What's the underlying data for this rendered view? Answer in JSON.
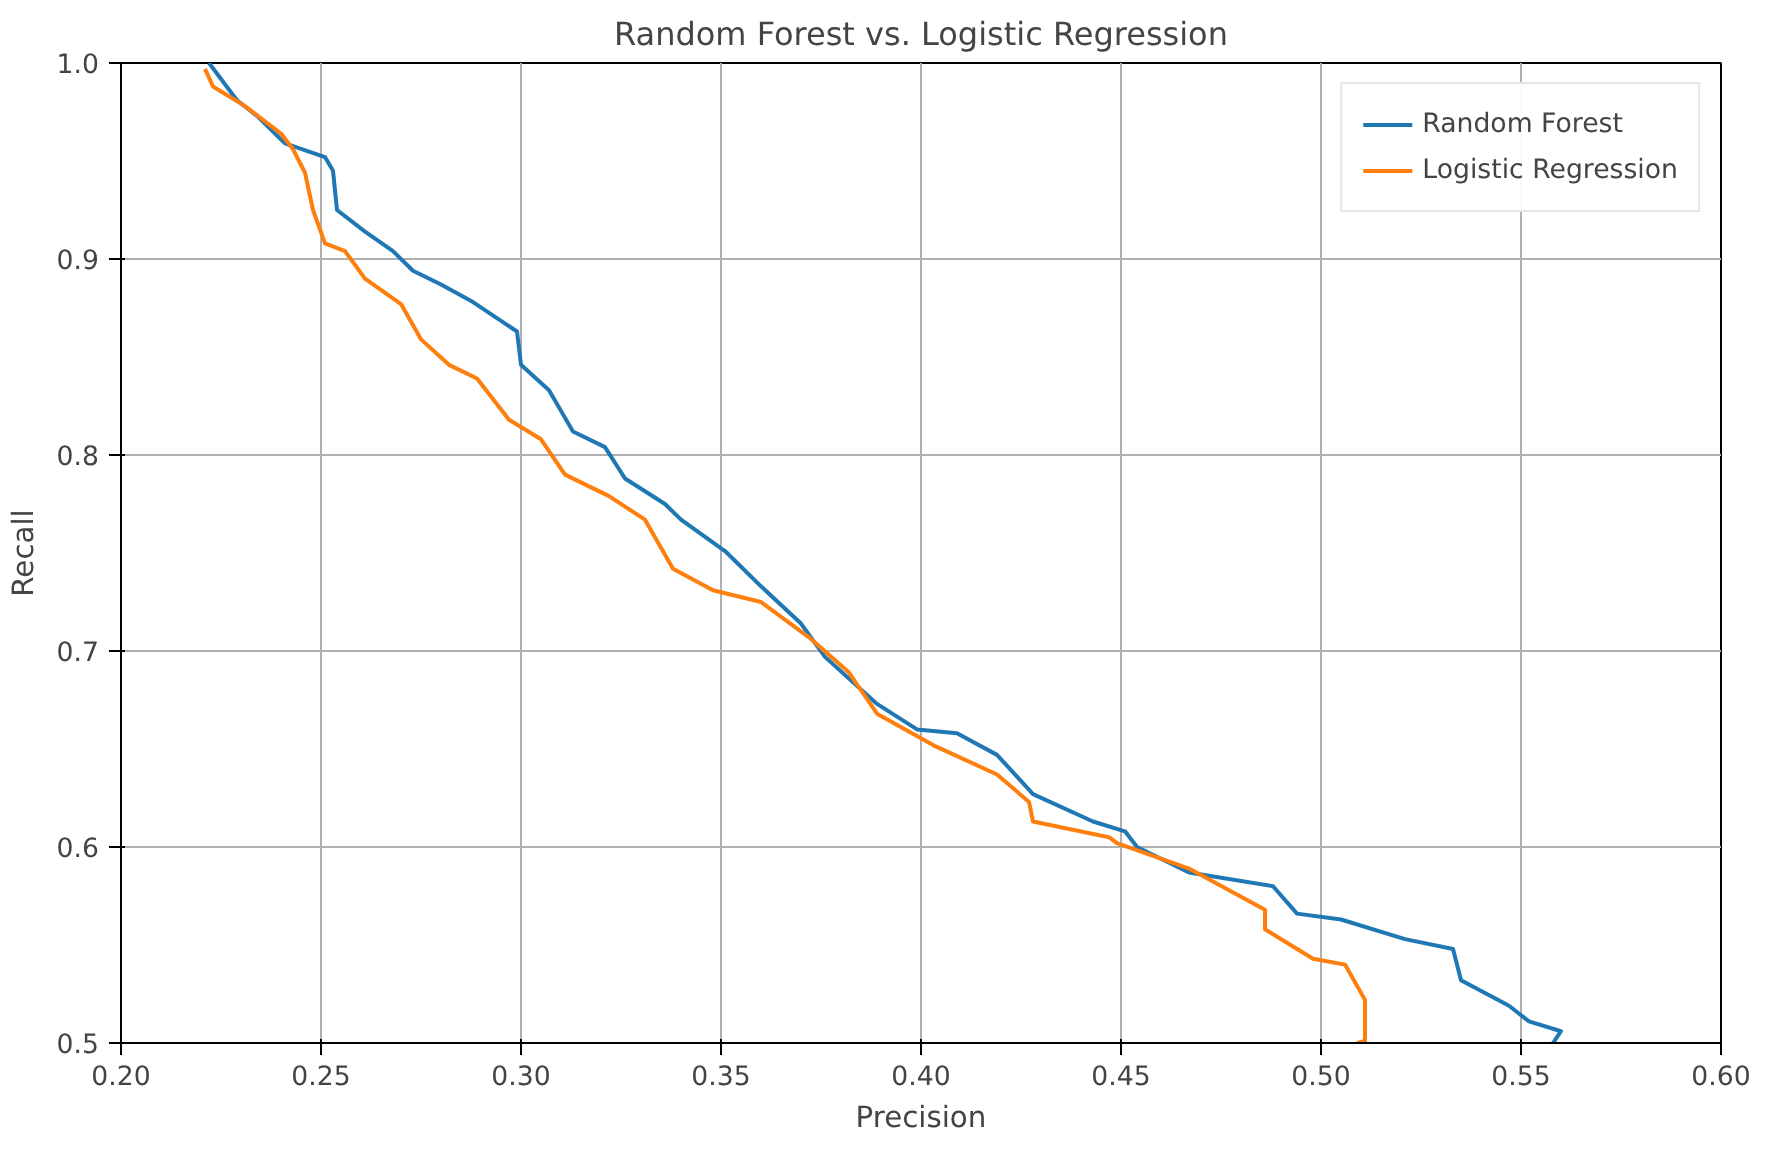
{
  "chart_data": {
    "type": "line",
    "title": "Random Forest vs. Logistic Regression",
    "xlabel": "Precision",
    "ylabel": "Recall",
    "xlim": [
      0.2,
      0.6
    ],
    "ylim": [
      0.5,
      1.0
    ],
    "xticks": [
      {
        "value": 0.2,
        "label": "0.20"
      },
      {
        "value": 0.25,
        "label": "0.25"
      },
      {
        "value": 0.3,
        "label": "0.30"
      },
      {
        "value": 0.35,
        "label": "0.35"
      },
      {
        "value": 0.4,
        "label": "0.40"
      },
      {
        "value": 0.45,
        "label": "0.45"
      },
      {
        "value": 0.5,
        "label": "0.50"
      },
      {
        "value": 0.55,
        "label": "0.55"
      },
      {
        "value": 0.6,
        "label": "0.60"
      }
    ],
    "yticks": [
      0.5,
      0.6,
      0.7,
      0.8,
      0.9,
      {
        "value": 1.0,
        "label": "1.0"
      }
    ],
    "grid": true,
    "legend": "top right",
    "line_style": "solid",
    "marker": "none",
    "series": [
      {
        "name": "Random Forest",
        "color": "#1f77b4",
        "x": [
          0.222,
          0.229,
          0.234,
          0.241,
          0.251,
          0.253,
          0.254,
          0.261,
          0.268,
          0.273,
          0.28,
          0.288,
          0.299,
          0.3,
          0.307,
          0.313,
          0.321,
          0.326,
          0.336,
          0.34,
          0.351,
          0.36,
          0.37,
          0.376,
          0.389,
          0.399,
          0.409,
          0.419,
          0.428,
          0.443,
          0.451,
          0.454,
          0.467,
          0.488,
          0.494,
          0.505,
          0.521,
          0.533,
          0.535,
          0.547,
          0.552,
          0.56,
          0.558
        ],
        "values": [
          1.0,
          0.981,
          0.973,
          0.959,
          0.952,
          0.945,
          0.925,
          0.914,
          0.904,
          0.894,
          0.887,
          0.878,
          0.863,
          0.846,
          0.833,
          0.812,
          0.804,
          0.788,
          0.775,
          0.767,
          0.751,
          0.733,
          0.714,
          0.697,
          0.673,
          0.66,
          0.658,
          0.647,
          0.627,
          0.613,
          0.608,
          0.6,
          0.587,
          0.58,
          0.566,
          0.563,
          0.553,
          0.548,
          0.532,
          0.519,
          0.511,
          0.506,
          0.5
        ]
      },
      {
        "name": "Logistic Regression",
        "color": "#ff7f0e",
        "x": [
          0.221,
          0.223,
          0.231,
          0.24,
          0.243,
          0.246,
          0.248,
          0.251,
          0.256,
          0.261,
          0.27,
          0.275,
          0.282,
          0.289,
          0.297,
          0.305,
          0.311,
          0.322,
          0.331,
          0.338,
          0.348,
          0.36,
          0.372,
          0.382,
          0.389,
          0.403,
          0.419,
          0.427,
          0.428,
          0.447,
          0.449,
          0.467,
          0.486,
          0.486,
          0.498,
          0.506,
          0.511,
          0.511,
          0.509
        ],
        "values": [
          0.997,
          0.988,
          0.978,
          0.964,
          0.956,
          0.944,
          0.925,
          0.908,
          0.904,
          0.89,
          0.877,
          0.859,
          0.846,
          0.839,
          0.818,
          0.808,
          0.79,
          0.779,
          0.767,
          0.742,
          0.731,
          0.725,
          0.707,
          0.689,
          0.668,
          0.652,
          0.637,
          0.623,
          0.613,
          0.605,
          0.602,
          0.589,
          0.568,
          0.558,
          0.543,
          0.54,
          0.522,
          0.501,
          0.5
        ]
      }
    ]
  }
}
